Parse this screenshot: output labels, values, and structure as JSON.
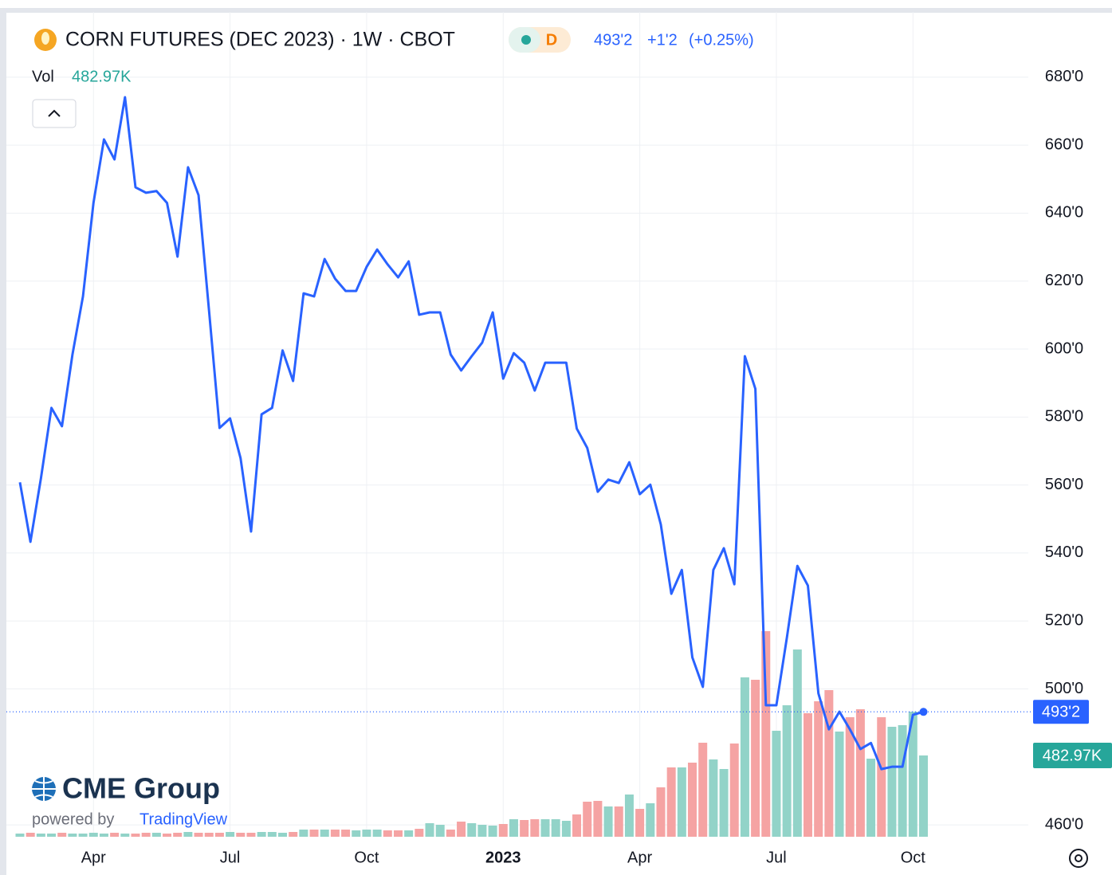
{
  "chart_data": {
    "type": "line",
    "title": "CORN FUTURES (DEC 2023) · 1W · CBOT",
    "interval_badge": "D",
    "last": {
      "price": "493'2",
      "change": "+1'2",
      "change_pct": "(+0.25%)"
    },
    "vol_label": "482.97K",
    "logo": {
      "name": "CME Group",
      "powered": "powered by",
      "brand": "TradingView"
    },
    "categories": [
      null,
      null,
      null,
      null,
      null,
      null,
      null,
      "Apr",
      null,
      null,
      null,
      null,
      null,
      null,
      null,
      null,
      null,
      null,
      null,
      null,
      "Jul",
      null,
      null,
      null,
      null,
      null,
      null,
      null,
      null,
      null,
      null,
      null,
      null,
      "Oct",
      null,
      null,
      null,
      null,
      null,
      null,
      null,
      null,
      null,
      null,
      null,
      null,
      "2023",
      null,
      null,
      null,
      null,
      null,
      null,
      null,
      null,
      null,
      null,
      null,
      null,
      "Apr",
      null,
      null,
      null,
      null,
      null,
      null,
      null,
      null,
      null,
      null,
      null,
      null,
      "Jul",
      null,
      null,
      null,
      null,
      null,
      null,
      null,
      null,
      null,
      null,
      null,
      null,
      "Oct",
      null
    ],
    "series": [
      {
        "color": "#2962ff",
        "values": [
          560.8,
          543.3,
          562,
          582.7,
          577.3,
          598.4,
          615.5,
          643,
          661.7,
          655.8,
          674.1,
          647.6,
          646,
          646.5,
          643,
          627.2,
          653.5,
          645.3,
          611.3,
          576.8,
          579.6,
          567.9,
          546.3,
          580.8,
          582.7,
          599.6,
          590.6,
          616.4,
          615.5,
          626.5,
          620.7,
          617.1,
          617.1,
          624.2,
          629.3,
          624.9,
          621.1,
          625.8,
          610.1,
          610.8,
          610.8,
          598.4,
          593.7,
          597.9,
          601.9,
          610.8,
          591.3,
          598.8,
          596,
          587.8,
          596,
          596,
          596,
          576.6,
          570.9,
          558,
          561.6,
          560.6,
          566.7,
          557.3,
          560.1,
          548.4,
          528,
          535,
          509.3,
          500.6,
          535,
          541.4,
          530.8,
          597.9,
          588.3,
          495.2,
          495.2,
          515.1,
          536.2,
          530.4,
          498.7,
          488.1,
          493.3,
          488.1,
          482.3,
          484.1,
          476.4,
          477.1,
          477.1,
          492.4,
          493.25
        ]
      },
      {
        "name": "Vol",
        "axis": "y2",
        "up_color": "#92d3c8",
        "down_color": "#f5a3a3",
        "values": [
          18900,
          23700,
          18900,
          18900,
          23700,
          18900,
          18900,
          23700,
          18900,
          23700,
          18900,
          18900,
          23700,
          23700,
          18900,
          23700,
          28400,
          23700,
          23700,
          23700,
          28400,
          23700,
          23700,
          28400,
          28400,
          23700,
          28400,
          42600,
          42600,
          42600,
          42600,
          42600,
          37900,
          42600,
          42600,
          37900,
          37900,
          37900,
          47300,
          80500,
          71000,
          42600,
          89900,
          80500,
          71000,
          66300,
          75700,
          104100,
          99400,
          104100,
          104100,
          104100,
          94700,
          132600,
          208300,
          213000,
          179900,
          179900,
          250900,
          165700,
          198800,
          293500,
          411900,
          411900,
          440300,
          558600,
          459200,
          402400,
          553900,
          946800,
          932600,
          1221400,
          629600,
          781100,
          1112500,
          733800,
          804800,
          871100,
          624900,
          710100,
          757400,
          463900,
          710100,
          653300,
          662800,
          743200,
          482970
        ]
      }
    ],
    "ylim": [
      456.5,
      699.2
    ],
    "yticks": [
      {
        "value": 680,
        "label": "680'0"
      },
      {
        "value": 660,
        "label": "660'0"
      },
      {
        "value": 640,
        "label": "640'0"
      },
      {
        "value": 620,
        "label": "620'0"
      },
      {
        "value": 600,
        "label": "600'0"
      },
      {
        "value": 580,
        "label": "580'0"
      },
      {
        "value": 560,
        "label": "560'0"
      },
      {
        "value": 540,
        "label": "540'0"
      },
      {
        "value": 520,
        "label": "520'0"
      },
      {
        "value": 500,
        "label": "500'0"
      },
      {
        "value": 460,
        "label": "460'0"
      }
    ],
    "y2lim": [
      0,
      4900000
    ],
    "grid": true
  }
}
